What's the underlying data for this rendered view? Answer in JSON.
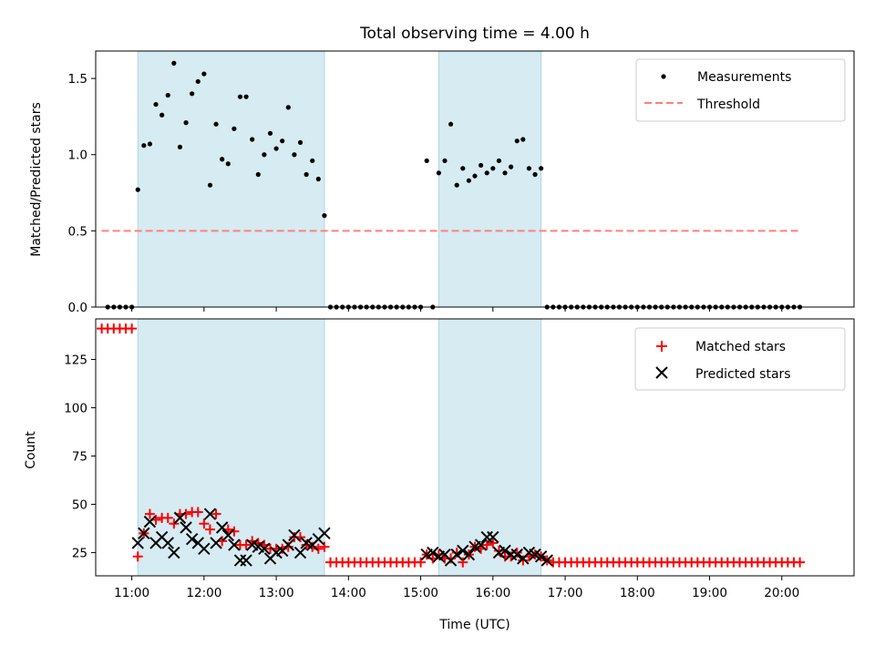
{
  "chart_data": {
    "type": "scatter",
    "title": "Total observing time = 4.00 h",
    "xlabel": "Time (UTC)",
    "x_ticks": [
      "11:00",
      "12:00",
      "13:00",
      "14:00",
      "15:00",
      "16:00",
      "17:00",
      "18:00",
      "19:00",
      "20:00"
    ],
    "x_range": [
      "10:30",
      "21:00"
    ],
    "highlight_intervals": [
      [
        "11:05",
        "13:40"
      ],
      [
        "15:15",
        "16:40"
      ]
    ],
    "colors": {
      "measurement": "#000000",
      "threshold": "#ff7f7f",
      "matched": "#ff0000",
      "predicted": "#000000",
      "shade": "#add8e6"
    },
    "panels": [
      {
        "ylabel": "Matched/Predicted stars",
        "ylim": [
          0,
          1.68
        ],
        "y_ticks": [
          "0.0",
          "0.5",
          "1.0",
          "1.5"
        ],
        "y_tick_values": [
          0,
          0.5,
          1.0,
          1.5
        ],
        "legend_position": "upper right",
        "legend": [
          "Measurements",
          "Threshold"
        ],
        "threshold": {
          "value": 0.5,
          "x_start": "10:35",
          "x_end": "20:15"
        },
        "measurements": {
          "x": [
            "10:40",
            "10:45",
            "10:50",
            "10:55",
            "11:00",
            "11:05",
            "11:10",
            "11:15",
            "11:20",
            "11:25",
            "11:30",
            "11:35",
            "11:40",
            "11:45",
            "11:50",
            "11:55",
            "12:00",
            "12:05",
            "12:10",
            "12:15",
            "12:20",
            "12:25",
            "12:30",
            "12:35",
            "12:40",
            "12:45",
            "12:50",
            "12:55",
            "13:00",
            "13:05",
            "13:10",
            "13:15",
            "13:20",
            "13:25",
            "13:30",
            "13:35",
            "13:40",
            "13:45",
            "13:50",
            "13:55",
            "14:00",
            "14:05",
            "14:10",
            "14:15",
            "14:20",
            "14:25",
            "14:30",
            "14:35",
            "14:40",
            "14:45",
            "14:50",
            "14:55",
            "15:00",
            "15:05",
            "15:10",
            "15:15",
            "15:20",
            "15:25",
            "15:30",
            "15:35",
            "15:40",
            "15:45",
            "15:50",
            "15:55",
            "16:00",
            "16:05",
            "16:10",
            "16:15",
            "16:20",
            "16:25",
            "16:30",
            "16:35",
            "16:40",
            "16:45",
            "16:50",
            "16:55",
            "17:00",
            "17:05",
            "17:10",
            "17:15",
            "17:20",
            "17:25",
            "17:30",
            "17:35",
            "17:40",
            "17:45",
            "17:50",
            "17:55",
            "18:00",
            "18:05",
            "18:10",
            "18:15",
            "18:20",
            "18:25",
            "18:30",
            "18:35",
            "18:40",
            "18:45",
            "18:50",
            "18:55",
            "19:00",
            "19:05",
            "19:10",
            "19:15",
            "19:20",
            "19:25",
            "19:30",
            "19:35",
            "19:40",
            "19:45",
            "19:50",
            "19:55",
            "20:00",
            "20:05",
            "20:10",
            "20:15"
          ],
          "y": [
            0,
            0,
            0,
            0,
            0,
            0.77,
            1.06,
            1.07,
            1.33,
            1.26,
            1.39,
            1.6,
            1.05,
            1.21,
            1.4,
            1.48,
            1.53,
            0.8,
            1.2,
            0.97,
            0.94,
            1.17,
            1.38,
            1.38,
            1.1,
            0.87,
            1.0,
            1.14,
            1.04,
            1.09,
            1.31,
            1.0,
            1.08,
            0.87,
            0.96,
            0.84,
            0.6,
            0,
            0,
            0,
            0,
            0,
            0,
            0,
            0,
            0,
            0,
            0,
            0,
            0,
            0,
            0,
            0,
            0.96,
            0,
            0.88,
            0.96,
            1.2,
            0.8,
            0.91,
            0.83,
            0.86,
            0.93,
            0.88,
            0.91,
            0.96,
            0.88,
            0.92,
            1.09,
            1.1,
            0.91,
            0.87,
            0.91,
            0,
            0,
            0,
            0,
            0,
            0,
            0,
            0,
            0,
            0,
            0,
            0,
            0,
            0,
            0,
            0,
            0,
            0,
            0,
            0,
            0,
            0,
            0,
            0,
            0,
            0,
            0,
            0,
            0,
            0,
            0,
            0,
            0,
            0,
            0,
            0,
            0,
            0,
            0,
            0,
            0,
            0,
            0
          ]
        }
      },
      {
        "ylabel": "Count",
        "ylim": [
          13,
          146
        ],
        "y_ticks": [
          "25",
          "50",
          "75",
          "100",
          "125"
        ],
        "y_tick_values": [
          25,
          50,
          75,
          100,
          125
        ],
        "legend_position": "upper right",
        "legend": [
          "Matched stars",
          "Predicted stars"
        ],
        "matched": {
          "x": [
            "10:35",
            "10:40",
            "10:45",
            "10:50",
            "10:55",
            "11:00",
            "11:05",
            "11:10",
            "11:15",
            "11:20",
            "11:25",
            "11:30",
            "11:35",
            "11:40",
            "11:45",
            "11:50",
            "11:55",
            "12:00",
            "12:05",
            "12:10",
            "12:15",
            "12:20",
            "12:25",
            "12:30",
            "12:35",
            "12:40",
            "12:45",
            "12:50",
            "12:55",
            "13:00",
            "13:05",
            "13:10",
            "13:15",
            "13:20",
            "13:25",
            "13:30",
            "13:35",
            "13:40",
            "13:45",
            "13:50",
            "13:55",
            "14:00",
            "14:05",
            "14:10",
            "14:15",
            "14:20",
            "14:25",
            "14:30",
            "14:35",
            "14:40",
            "14:45",
            "14:50",
            "14:55",
            "15:00",
            "15:05",
            "15:10",
            "15:15",
            "15:20",
            "15:25",
            "15:30",
            "15:35",
            "15:40",
            "15:45",
            "15:50",
            "15:55",
            "16:00",
            "16:05",
            "16:10",
            "16:15",
            "16:20",
            "16:25",
            "16:30",
            "16:35",
            "16:40",
            "16:45",
            "16:50",
            "16:55",
            "17:00",
            "17:05",
            "17:10",
            "17:15",
            "17:20",
            "17:25",
            "17:30",
            "17:35",
            "17:40",
            "17:45",
            "17:50",
            "17:55",
            "18:00",
            "18:05",
            "18:10",
            "18:15",
            "18:20",
            "18:25",
            "18:30",
            "18:35",
            "18:40",
            "18:45",
            "18:50",
            "18:55",
            "19:00",
            "19:05",
            "19:10",
            "19:15",
            "19:20",
            "19:25",
            "19:30",
            "19:35",
            "19:40",
            "19:45",
            "19:50",
            "19:55",
            "20:00",
            "20:05",
            "20:10",
            "20:15"
          ],
          "y": [
            141,
            141,
            141,
            141,
            141,
            141,
            23,
            35,
            45,
            42,
            43,
            43,
            40,
            45,
            45,
            46,
            46,
            40,
            37,
            45,
            31,
            37,
            36,
            29,
            29,
            31,
            30,
            29,
            27,
            27,
            27,
            28,
            33,
            33,
            29,
            28,
            27,
            28,
            20,
            20,
            20,
            20,
            20,
            20,
            20,
            20,
            20,
            20,
            20,
            20,
            20,
            20,
            20,
            20,
            24,
            22,
            24,
            22,
            22,
            25,
            20,
            24,
            28,
            27,
            29,
            30,
            26,
            23,
            23,
            25,
            21,
            23,
            24,
            23,
            21,
            20,
            20,
            20,
            20,
            20,
            20,
            20,
            20,
            20,
            20,
            20,
            20,
            20,
            20,
            20,
            20,
            20,
            20,
            20,
            20,
            20,
            20,
            20,
            20,
            20,
            20,
            20,
            20,
            20,
            20,
            20,
            20,
            20,
            20,
            20,
            20,
            20,
            20,
            20,
            20,
            20,
            20
          ]
        },
        "predicted": {
          "x": [
            "11:05",
            "11:10",
            "11:15",
            "11:20",
            "11:25",
            "11:30",
            "11:35",
            "11:40",
            "11:45",
            "11:50",
            "11:55",
            "12:00",
            "12:05",
            "12:10",
            "12:15",
            "12:20",
            "12:25",
            "12:30",
            "12:35",
            "12:40",
            "12:45",
            "12:50",
            "12:55",
            "13:00",
            "13:05",
            "13:10",
            "13:15",
            "13:20",
            "13:25",
            "13:30",
            "13:35",
            "13:40",
            "15:05",
            "15:10",
            "15:15",
            "15:20",
            "15:25",
            "15:30",
            "15:35",
            "15:40",
            "15:45",
            "15:50",
            "15:55",
            "16:00",
            "16:05",
            "16:10",
            "16:15",
            "16:20",
            "16:25",
            "16:30",
            "16:35",
            "16:40",
            "16:45"
          ],
          "y": [
            30,
            35,
            41,
            30,
            33,
            30,
            25,
            43,
            38,
            32,
            30,
            27,
            45,
            30,
            38,
            34,
            29,
            21,
            21,
            29,
            28,
            27,
            22,
            25,
            26,
            29,
            34,
            25,
            30,
            29,
            32,
            35,
            24,
            25,
            23,
            24,
            21,
            24,
            26,
            24,
            28,
            29,
            33,
            33,
            25,
            26,
            24,
            24,
            22,
            25,
            24,
            23,
            21
          ]
        }
      }
    ]
  }
}
